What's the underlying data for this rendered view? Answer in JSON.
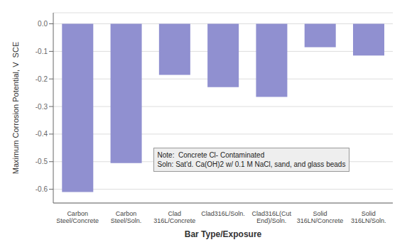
{
  "chart_data": {
    "type": "bar",
    "categories": [
      "Carbon\nSteel/Concrete",
      "Carbon\nSteel/Soln.",
      "Clad\n316L/Concrete",
      "Clad316L/Soln.",
      "Clad316L(Cut\nEnd)/Soln.",
      "Solid\n316LN/Concrete",
      "Solid\n316LN/Soln."
    ],
    "values": [
      -0.61,
      -0.505,
      -0.185,
      -0.23,
      -0.265,
      -0.085,
      -0.115
    ],
    "color": "#9090d0",
    "xlabel": "Bar Type/Exposure",
    "ylabel": "Maximum Corrosion Potential, V  SCE",
    "annotations": [
      "Note:  Concrete Cl- Contaminated",
      "Soln: Sat'd. Ca(OH)2 w/ 0.1 M NaCl, sand, and glass beads"
    ],
    "ylim": [
      -0.65,
      0.04
    ],
    "yticks": [
      {
        "value": 0,
        "label": "0.0"
      },
      -0.1,
      -0.2,
      -0.3,
      -0.4,
      -0.5,
      -0.6
    ],
    "grid": true
  }
}
